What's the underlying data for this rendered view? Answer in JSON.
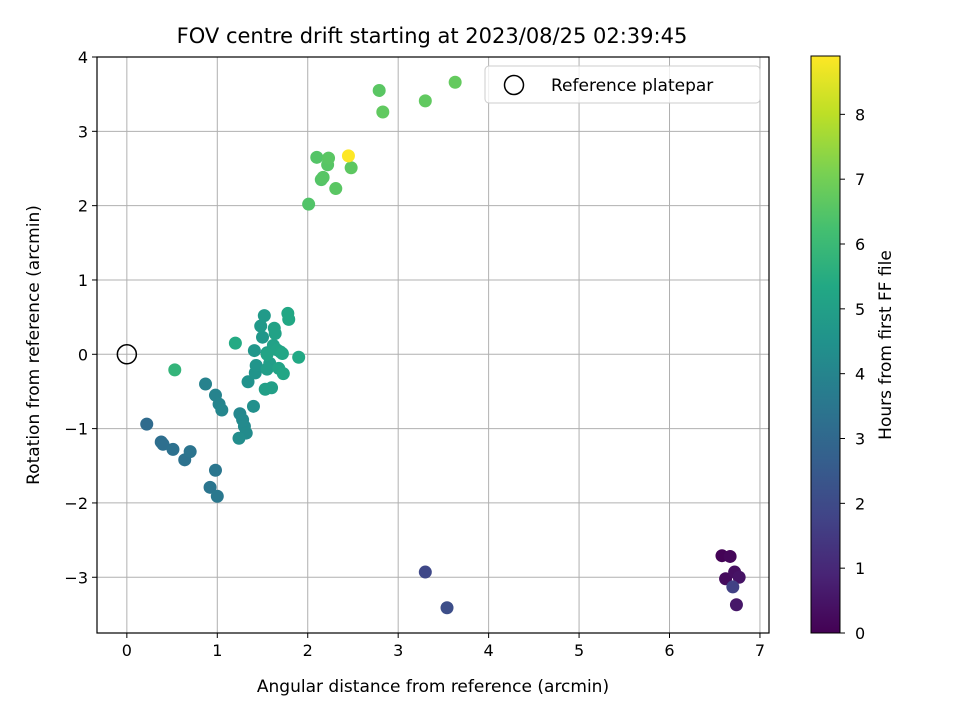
{
  "chart_data": {
    "type": "scatter",
    "title": "FOV centre drift starting at 2023/08/25 02:39:45",
    "xlabel": "Angular distance from reference (arcmin)",
    "ylabel": "Rotation from reference (arcmin)",
    "xlim": [
      -0.33,
      7.1
    ],
    "ylim": [
      -3.75,
      4.0
    ],
    "xticks": [
      "0",
      "1",
      "2",
      "3",
      "4",
      "5",
      "6",
      "7"
    ],
    "yticks": [
      "−3",
      "−2",
      "−1",
      "0",
      "1",
      "2",
      "3",
      "4"
    ],
    "xtick_values": [
      0,
      1,
      2,
      3,
      4,
      5,
      6,
      7
    ],
    "ytick_values": [
      -3,
      -2,
      -1,
      0,
      1,
      2,
      3,
      4
    ],
    "grid": true,
    "legend": {
      "placement": "top-right",
      "entries": [
        "Reference platepar"
      ]
    },
    "reference_point": {
      "x": 0,
      "y": 0
    },
    "colorbar": {
      "label": "Hours from first FF file",
      "colormap": "viridis",
      "range": [
        0,
        8.9
      ],
      "ticks": [
        "0",
        "1",
        "2",
        "3",
        "4",
        "5",
        "6",
        "7",
        "8"
      ],
      "tick_values": [
        0,
        1,
        2,
        3,
        4,
        5,
        6,
        7,
        8
      ]
    },
    "points": [
      {
        "x": 6.58,
        "y": -2.71,
        "h": 0.05
      },
      {
        "x": 6.67,
        "y": -2.72,
        "h": 0.15
      },
      {
        "x": 6.62,
        "y": -3.02,
        "h": 0.25
      },
      {
        "x": 6.72,
        "y": -2.93,
        "h": 0.35
      },
      {
        "x": 6.77,
        "y": -3.0,
        "h": 0.45
      },
      {
        "x": 6.74,
        "y": -3.37,
        "h": 0.55
      },
      {
        "x": 6.7,
        "y": -3.13,
        "h": 1.7
      },
      {
        "x": 3.3,
        "y": -2.93,
        "h": 1.9
      },
      {
        "x": 3.54,
        "y": -3.41,
        "h": 2.1
      },
      {
        "x": 0.22,
        "y": -0.94,
        "h": 3.1
      },
      {
        "x": 0.38,
        "y": -1.18,
        "h": 3.2
      },
      {
        "x": 0.4,
        "y": -1.21,
        "h": 3.25
      },
      {
        "x": 0.51,
        "y": -1.28,
        "h": 3.3
      },
      {
        "x": 0.64,
        "y": -1.42,
        "h": 3.35
      },
      {
        "x": 0.7,
        "y": -1.31,
        "h": 3.4
      },
      {
        "x": 0.92,
        "y": -1.79,
        "h": 3.45
      },
      {
        "x": 0.98,
        "y": -1.56,
        "h": 3.5
      },
      {
        "x": 1.0,
        "y": -1.91,
        "h": 3.55
      },
      {
        "x": 0.87,
        "y": -0.4,
        "h": 3.9
      },
      {
        "x": 0.98,
        "y": -0.55,
        "h": 3.95
      },
      {
        "x": 1.02,
        "y": -0.67,
        "h": 4.0
      },
      {
        "x": 1.05,
        "y": -0.75,
        "h": 4.05
      },
      {
        "x": 1.25,
        "y": -0.8,
        "h": 4.1
      },
      {
        "x": 1.28,
        "y": -0.88,
        "h": 4.15
      },
      {
        "x": 1.3,
        "y": -0.97,
        "h": 4.2
      },
      {
        "x": 1.32,
        "y": -1.06,
        "h": 4.25
      },
      {
        "x": 1.24,
        "y": -1.13,
        "h": 4.3
      },
      {
        "x": 1.4,
        "y": -0.7,
        "h": 4.4
      },
      {
        "x": 1.34,
        "y": -0.37,
        "h": 4.5
      },
      {
        "x": 1.42,
        "y": -0.25,
        "h": 4.55
      },
      {
        "x": 1.43,
        "y": -0.15,
        "h": 4.6
      },
      {
        "x": 1.41,
        "y": 0.05,
        "h": 4.65
      },
      {
        "x": 1.5,
        "y": 0.23,
        "h": 4.7
      },
      {
        "x": 1.48,
        "y": 0.38,
        "h": 4.75
      },
      {
        "x": 1.52,
        "y": 0.52,
        "h": 4.8
      },
      {
        "x": 1.55,
        "y": 0.02,
        "h": 4.85
      },
      {
        "x": 1.58,
        "y": -0.12,
        "h": 4.9
      },
      {
        "x": 1.55,
        "y": -0.2,
        "h": 4.95
      },
      {
        "x": 1.6,
        "y": -0.45,
        "h": 5.0
      },
      {
        "x": 1.53,
        "y": -0.47,
        "h": 5.0
      },
      {
        "x": 1.62,
        "y": 0.12,
        "h": 5.05
      },
      {
        "x": 1.64,
        "y": 0.28,
        "h": 5.1
      },
      {
        "x": 1.63,
        "y": 0.35,
        "h": 5.1
      },
      {
        "x": 1.66,
        "y": 0.06,
        "h": 5.15
      },
      {
        "x": 1.68,
        "y": -0.19,
        "h": 5.15
      },
      {
        "x": 1.7,
        "y": 0.03,
        "h": 5.2
      },
      {
        "x": 1.73,
        "y": -0.26,
        "h": 5.25
      },
      {
        "x": 1.72,
        "y": 0.01,
        "h": 5.25
      },
      {
        "x": 1.78,
        "y": 0.55,
        "h": 5.3
      },
      {
        "x": 1.79,
        "y": 0.47,
        "h": 5.3
      },
      {
        "x": 1.9,
        "y": -0.04,
        "h": 5.35
      },
      {
        "x": 1.2,
        "y": 0.15,
        "h": 5.4
      },
      {
        "x": 1.55,
        "y": 0.0,
        "h": 5.2
      },
      {
        "x": 0.53,
        "y": -0.21,
        "h": 5.8
      },
      {
        "x": 2.01,
        "y": 2.02,
        "h": 6.45
      },
      {
        "x": 2.1,
        "y": 2.65,
        "h": 6.5
      },
      {
        "x": 2.15,
        "y": 2.35,
        "h": 6.5
      },
      {
        "x": 2.17,
        "y": 2.38,
        "h": 6.55
      },
      {
        "x": 2.22,
        "y": 2.55,
        "h": 6.55
      },
      {
        "x": 2.23,
        "y": 2.64,
        "h": 6.6
      },
      {
        "x": 2.31,
        "y": 2.23,
        "h": 6.6
      },
      {
        "x": 2.48,
        "y": 2.51,
        "h": 6.65
      },
      {
        "x": 2.79,
        "y": 3.55,
        "h": 6.6
      },
      {
        "x": 2.83,
        "y": 3.26,
        "h": 6.7
      },
      {
        "x": 3.3,
        "y": 3.41,
        "h": 6.7
      },
      {
        "x": 3.63,
        "y": 3.66,
        "h": 6.75
      },
      {
        "x": 2.45,
        "y": 2.67,
        "h": 8.9
      }
    ]
  }
}
